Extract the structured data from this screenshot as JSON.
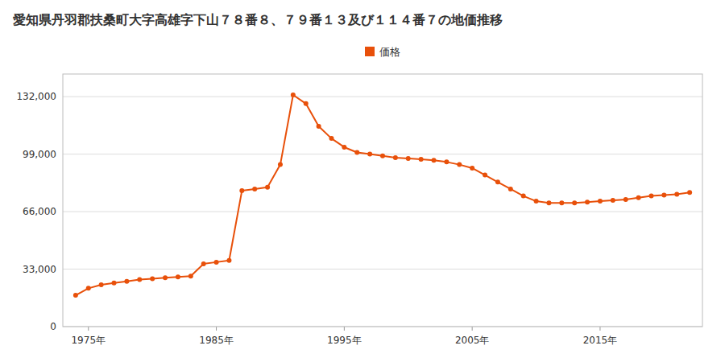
{
  "chart_data": {
    "type": "line",
    "title": "愛知県丹羽郡扶桑町大字高雄字下山７８番８、７９番１３及び１１４番７の地価推移",
    "x": [
      1974,
      1975,
      1976,
      1977,
      1978,
      1979,
      1980,
      1981,
      1982,
      1983,
      1984,
      1985,
      1986,
      1987,
      1988,
      1989,
      1990,
      1991,
      1992,
      1993,
      1994,
      1995,
      1996,
      1997,
      1998,
      1999,
      2000,
      2001,
      2002,
      2003,
      2004,
      2005,
      2006,
      2007,
      2008,
      2009,
      2010,
      2011,
      2012,
      2013,
      2014,
      2015,
      2016,
      2017,
      2018,
      2019,
      2020,
      2021,
      2022
    ],
    "series": [
      {
        "name": "価格",
        "color": "#e8500a",
        "marker": "circle",
        "values": [
          18000,
          22000,
          24000,
          25000,
          26000,
          27000,
          27500,
          28000,
          28500,
          29000,
          36000,
          37000,
          38000,
          78000,
          79000,
          80000,
          93000,
          133000,
          128000,
          115000,
          108000,
          103000,
          100000,
          99000,
          98000,
          97000,
          96500,
          96000,
          95500,
          94500,
          93000,
          91000,
          87000,
          83000,
          79000,
          75000,
          72000,
          71000,
          71000,
          71000,
          71500,
          72000,
          72500,
          73000,
          74000,
          75000,
          75500,
          76000,
          77000
        ]
      }
    ],
    "xlim": [
      1973,
      2023
    ],
    "xticks": [
      {
        "value": 1975,
        "label": "1975年"
      },
      {
        "value": 1985,
        "label": "1985年"
      },
      {
        "value": 1995,
        "label": "1995年"
      },
      {
        "value": 2005,
        "label": "2005年"
      },
      {
        "value": 2015,
        "label": "2015年"
      }
    ],
    "ylim": [
      0,
      145000
    ],
    "yticks": [
      0,
      {
        "value": 33000,
        "label": "33,000"
      },
      {
        "value": 66000,
        "label": "66,000"
      },
      {
        "value": 99000,
        "label": "99,000"
      },
      {
        "value": 132000,
        "label": "132,000"
      }
    ],
    "grid": "y",
    "legend": "top"
  }
}
